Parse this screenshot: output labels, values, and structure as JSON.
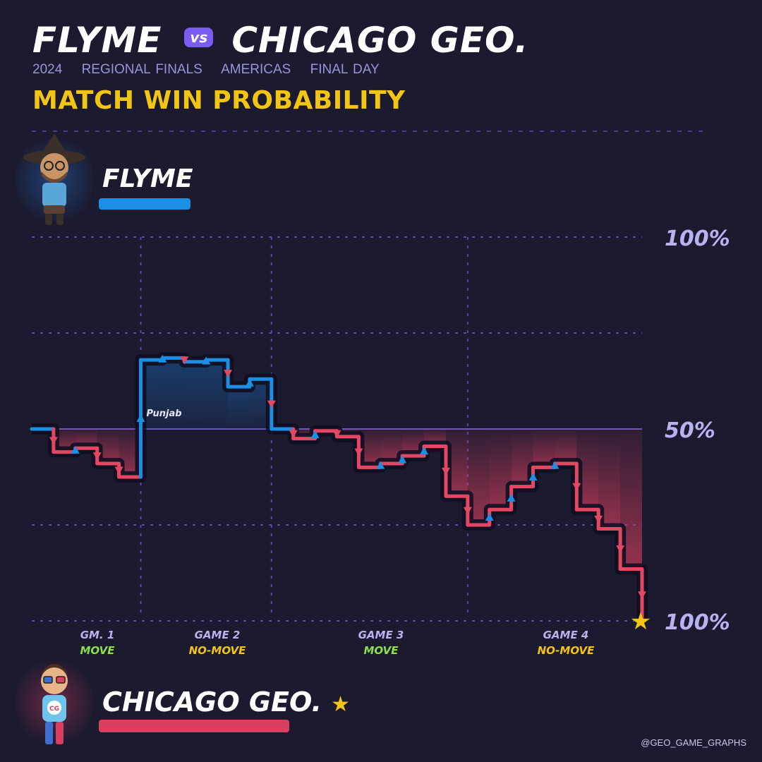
{
  "header": {
    "team_a": "FLYME",
    "vs": "vs",
    "team_b": "CHICAGO GEO.",
    "subtitle": [
      "2024",
      "REGIONAL FINALS",
      "AMERICAS",
      "FINAL DAY"
    ],
    "heading": "MATCH WIN PROBABILITY"
  },
  "teams": {
    "top": {
      "name": "FLYME",
      "color": "#1a8fe3"
    },
    "bottom": {
      "name": "CHICAGO GEO.",
      "winner_mark": "★",
      "color": "#d9405f"
    }
  },
  "credit": "@GEO_GAME_GRAPHS",
  "chart_data": {
    "type": "line",
    "interpolation": "step",
    "ylim": [
      -100,
      100
    ],
    "y_tick_labels": [
      "100%",
      "50%",
      "100%"
    ],
    "grid": true,
    "games": [
      {
        "label": "GM. 1",
        "mode": "MOVE",
        "mode_color": "#8ee04a",
        "x_range": [
          0,
          5
        ]
      },
      {
        "label": "GAME 2",
        "mode": "NO-MOVE",
        "mode_color": "#f2c514",
        "x_range": [
          5,
          11
        ]
      },
      {
        "label": "GAME 3",
        "mode": "MOVE",
        "mode_color": "#8ee04a",
        "x_range": [
          11,
          20
        ]
      },
      {
        "label": "GAME 4",
        "mode": "NO-MOVE",
        "mode_color": "#f2c514",
        "x_range": [
          20,
          28
        ]
      }
    ],
    "series": [
      {
        "x": [
          0,
          1,
          2,
          3,
          4,
          5,
          6,
          7,
          8,
          9,
          10,
          11,
          12,
          13,
          14,
          15,
          16,
          17,
          18,
          19,
          20,
          21,
          22,
          23,
          24,
          25,
          26,
          27,
          28
        ],
        "y": [
          0,
          -12,
          -10,
          -18,
          -25,
          36,
          37,
          35,
          36,
          22,
          26,
          0,
          -5,
          -1,
          -4,
          -20,
          -18,
          -14,
          -9,
          -35,
          -50,
          -42,
          -30,
          -20,
          -18,
          -42,
          -52,
          -73,
          -100
        ]
      }
    ],
    "annotations": [
      {
        "x": 5,
        "text": "Punjab"
      }
    ],
    "winner_marker": "★"
  }
}
